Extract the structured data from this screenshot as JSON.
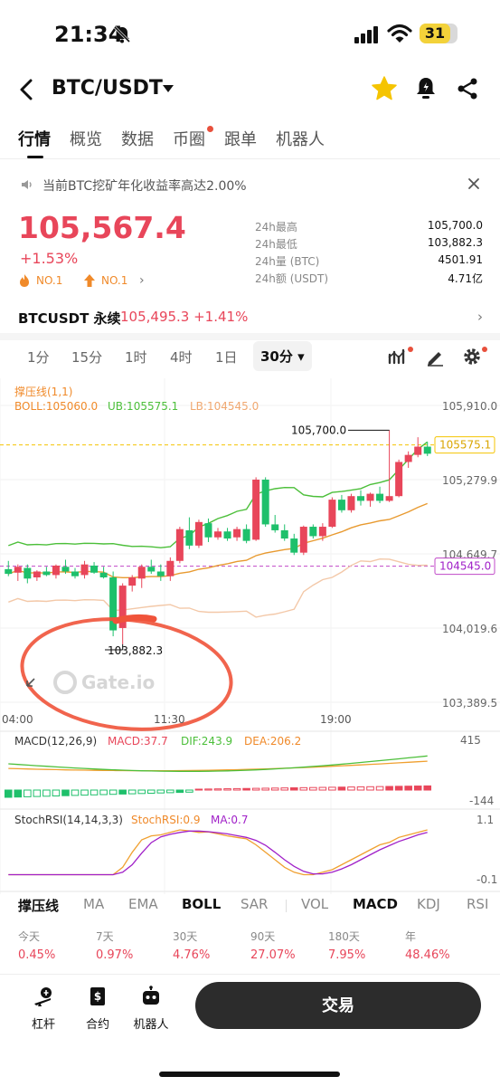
{
  "status": {
    "time": "21:34",
    "battery": "31"
  },
  "header": {
    "pair": "BTC/USDT"
  },
  "tabs": [
    "行情",
    "概览",
    "数据",
    "币圈",
    "跟单",
    "机器人"
  ],
  "notice": "当前BTC挖矿年化收益率高达2.00%",
  "ticker": {
    "price": "105,567.4",
    "change": "+1.53%",
    "rank1": "NO.1",
    "rank2": "NO.1",
    "stats": [
      {
        "label": "24h最高",
        "value": "105,700.0"
      },
      {
        "label": "24h最低",
        "value": "103,882.3"
      },
      {
        "label": "24h量 (BTC)",
        "value": "4501.91"
      },
      {
        "label": "24h额 (USDT)",
        "value": "4.71亿"
      }
    ]
  },
  "perpetual": {
    "name": "BTCUSDT 永续",
    "price_change": "105,495.3 +1.41%"
  },
  "intervals": [
    "1分",
    "15分",
    "1时",
    "4时",
    "1日",
    "30分"
  ],
  "chart": {
    "indicator_title": "撑压线(1,1)",
    "boll_label": "BOLL:105060.0",
    "ub_label": "UB:105575.1",
    "lb_label": "LB:104545.0",
    "price_axis": [
      "105,910.0",
      "105,279.9",
      "104,649.7",
      "104,019.6",
      "103,389.5"
    ],
    "ub_tag": "105575.1",
    "lb_tag": "104545.0",
    "high_annotation": "105,700.0",
    "low_annotation": "103,882.3",
    "time_axis": [
      "04:00",
      "11:30",
      "19:00"
    ],
    "watermark": "Gate.io",
    "macd_title": "MACD(12,26,9)",
    "macd_value": "MACD:37.7",
    "dif_value": "DIF:243.9",
    "dea_value": "DEA:206.2",
    "macd_axis": [
      "415",
      "-144"
    ],
    "stoch_title": "StochRSI(14,14,3,3)",
    "stoch_value": "StochRSI:0.9",
    "stoch_ma": "MA:0.7",
    "stoch_axis": [
      "1.1",
      "-0.1"
    ]
  },
  "chart_data": {
    "type": "candlestick",
    "symbol": "BTC/USDT",
    "interval": "30分",
    "time_labels": [
      "04:00",
      "11:30",
      "19:00"
    ],
    "ylim": [
      103389.5,
      105910.0
    ],
    "candles": [
      {
        "o": 104520,
        "h": 104590,
        "l": 104460,
        "c": 104480
      },
      {
        "o": 104490,
        "h": 104560,
        "l": 104420,
        "c": 104540
      },
      {
        "o": 104530,
        "h": 104560,
        "l": 104400,
        "c": 104440
      },
      {
        "o": 104450,
        "h": 104510,
        "l": 104420,
        "c": 104500
      },
      {
        "o": 104500,
        "h": 104540,
        "l": 104460,
        "c": 104470
      },
      {
        "o": 104470,
        "h": 104560,
        "l": 104440,
        "c": 104550
      },
      {
        "o": 104540,
        "h": 104600,
        "l": 104480,
        "c": 104500
      },
      {
        "o": 104500,
        "h": 104530,
        "l": 104440,
        "c": 104460
      },
      {
        "o": 104470,
        "h": 104590,
        "l": 104440,
        "c": 104560
      },
      {
        "o": 104550,
        "h": 104580,
        "l": 104480,
        "c": 104490
      },
      {
        "o": 104490,
        "h": 104540,
        "l": 104440,
        "c": 104450
      },
      {
        "o": 104450,
        "h": 104500,
        "l": 103950,
        "c": 104000
      },
      {
        "o": 104020,
        "h": 104400,
        "l": 103882,
        "c": 104380
      },
      {
        "o": 104380,
        "h": 104470,
        "l": 104330,
        "c": 104450
      },
      {
        "o": 104440,
        "h": 104560,
        "l": 104360,
        "c": 104540
      },
      {
        "o": 104540,
        "h": 104600,
        "l": 104480,
        "c": 104500
      },
      {
        "o": 104500,
        "h": 104560,
        "l": 104420,
        "c": 104460
      },
      {
        "o": 104460,
        "h": 104620,
        "l": 104420,
        "c": 104590
      },
      {
        "o": 104590,
        "h": 104880,
        "l": 104570,
        "c": 104860
      },
      {
        "o": 104850,
        "h": 104960,
        "l": 104690,
        "c": 104720
      },
      {
        "o": 104720,
        "h": 104940,
        "l": 104700,
        "c": 104920
      },
      {
        "o": 104910,
        "h": 104950,
        "l": 104750,
        "c": 104790
      },
      {
        "o": 104790,
        "h": 104870,
        "l": 104770,
        "c": 104840
      },
      {
        "o": 104840,
        "h": 104870,
        "l": 104760,
        "c": 104780
      },
      {
        "o": 104790,
        "h": 104880,
        "l": 104760,
        "c": 104860
      },
      {
        "o": 104860,
        "h": 104900,
        "l": 104740,
        "c": 104760
      },
      {
        "o": 104770,
        "h": 105300,
        "l": 104760,
        "c": 105280
      },
      {
        "o": 105280,
        "h": 105300,
        "l": 104880,
        "c": 104900
      },
      {
        "o": 104900,
        "h": 104980,
        "l": 104830,
        "c": 104850
      },
      {
        "o": 104850,
        "h": 104900,
        "l": 104760,
        "c": 104780
      },
      {
        "o": 104780,
        "h": 104820,
        "l": 104640,
        "c": 104660
      },
      {
        "o": 104660,
        "h": 104890,
        "l": 104640,
        "c": 104880
      },
      {
        "o": 104880,
        "h": 104900,
        "l": 104780,
        "c": 104800
      },
      {
        "o": 104800,
        "h": 104910,
        "l": 104760,
        "c": 104880
      },
      {
        "o": 104880,
        "h": 105130,
        "l": 104870,
        "c": 105110
      },
      {
        "o": 105110,
        "h": 105150,
        "l": 105000,
        "c": 105020
      },
      {
        "o": 105020,
        "h": 105160,
        "l": 105000,
        "c": 105140
      },
      {
        "o": 105140,
        "h": 105190,
        "l": 105060,
        "c": 105100
      },
      {
        "o": 105100,
        "h": 105170,
        "l": 105050,
        "c": 105160
      },
      {
        "o": 105160,
        "h": 105220,
        "l": 105080,
        "c": 105100
      },
      {
        "o": 105100,
        "h": 105700,
        "l": 105090,
        "c": 105140
      },
      {
        "o": 105140,
        "h": 105450,
        "l": 105130,
        "c": 105430
      },
      {
        "o": 105430,
        "h": 105520,
        "l": 105380,
        "c": 105490
      },
      {
        "o": 105490,
        "h": 105640,
        "l": 105470,
        "c": 105560
      },
      {
        "o": 105560,
        "h": 105600,
        "l": 105480,
        "c": 105500
      }
    ],
    "levels": {
      "ub": 105575.1,
      "lb": 104545.0,
      "boll": 105060.0
    },
    "high": 105700.0,
    "low": 103882.3,
    "macd": {
      "macd": 37.7,
      "dif": 243.9,
      "dea": 206.2,
      "ylim": [
        -144,
        415
      ]
    },
    "stochrsi": {
      "stochrsi": 0.9,
      "ma": 0.7,
      "ylim": [
        -0.1,
        1.1
      ]
    }
  },
  "indicator_tabs": [
    "撑压线",
    "MA",
    "EMA",
    "BOLL",
    "SAR",
    "VOL",
    "MACD",
    "KDJ",
    "RSI"
  ],
  "performance": [
    {
      "label": "今天",
      "value": "0.45%"
    },
    {
      "label": "7天",
      "value": "0.97%"
    },
    {
      "label": "30天",
      "value": "4.76%"
    },
    {
      "label": "90天",
      "value": "27.07%"
    },
    {
      "label": "180天",
      "value": "7.95%"
    },
    {
      "label": "年",
      "value": "48.46%"
    }
  ],
  "bottom": {
    "leverage": "杠杆",
    "contract": "合约",
    "robot": "机器人",
    "trade": "交易"
  },
  "colors": {
    "up": "#e8465a",
    "down": "#1ec06b",
    "accent": "#f5c400"
  }
}
